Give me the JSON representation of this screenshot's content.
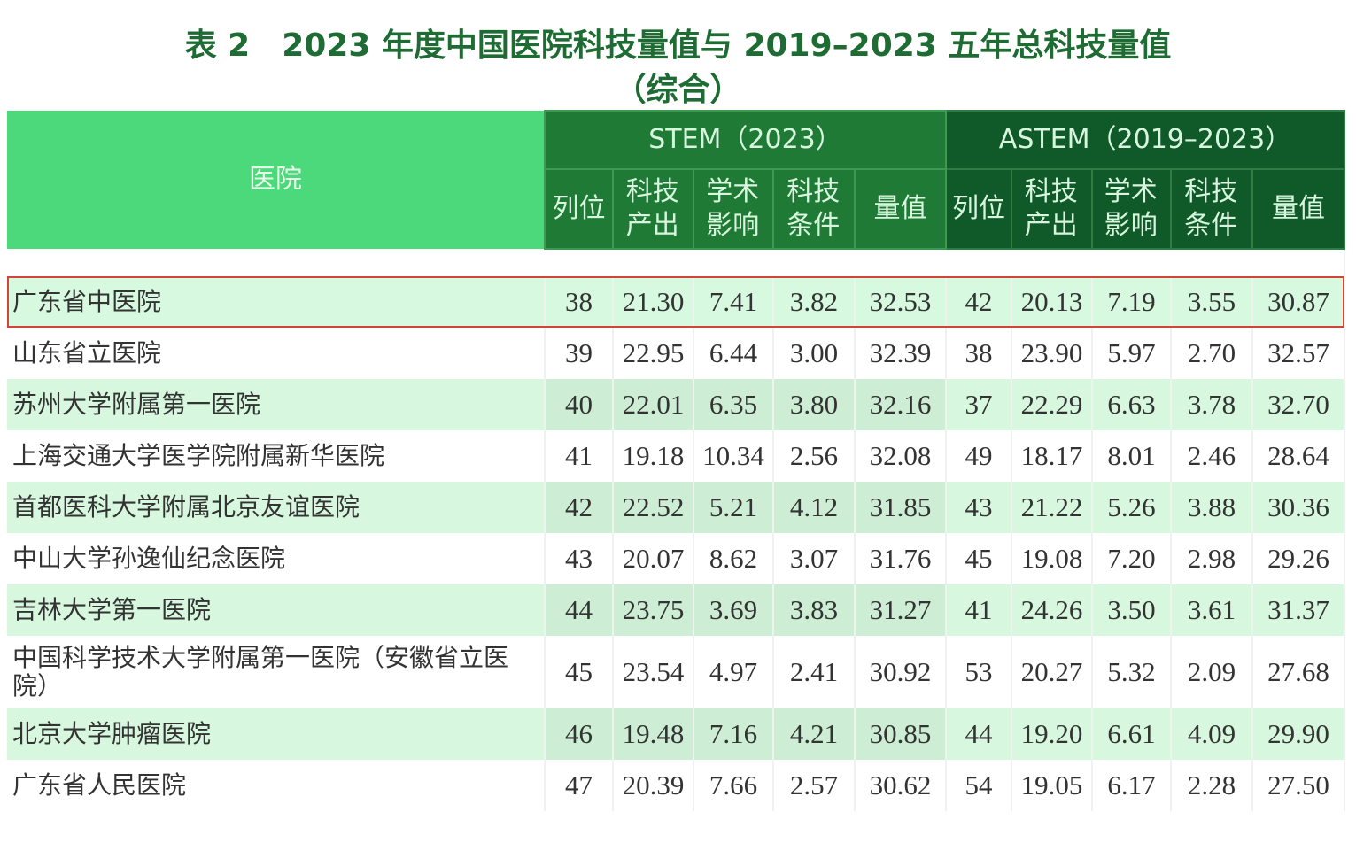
{
  "title": {
    "line1": "表 2　2023 年度中国医院科技量值与 2019–2023 五年总科技量值",
    "line2": "（综合）"
  },
  "header": {
    "hospital": "医院",
    "stem": "STEM（2023）",
    "astem": "ASTEM（2019–2023）",
    "cols": [
      "列位",
      "科技产出",
      "学术影响",
      "科技条件",
      "量值"
    ]
  },
  "rows": [
    [
      "广东省中医院",
      "38",
      "21.30",
      "7.41",
      "3.82",
      "32.53",
      "42",
      "20.13",
      "7.19",
      "3.55",
      "30.87"
    ],
    [
      "山东省立医院",
      "39",
      "22.95",
      "6.44",
      "3.00",
      "32.39",
      "38",
      "23.90",
      "5.97",
      "2.70",
      "32.57"
    ],
    [
      "苏州大学附属第一医院",
      "40",
      "22.01",
      "6.35",
      "3.80",
      "32.16",
      "37",
      "22.29",
      "6.63",
      "3.78",
      "32.70"
    ],
    [
      "上海交通大学医学院附属新华医院",
      "41",
      "19.18",
      "10.34",
      "2.56",
      "32.08",
      "49",
      "18.17",
      "8.01",
      "2.46",
      "28.64"
    ],
    [
      "首都医科大学附属北京友谊医院",
      "42",
      "22.52",
      "5.21",
      "4.12",
      "31.85",
      "43",
      "21.22",
      "5.26",
      "3.88",
      "30.36"
    ],
    [
      "中山大学孙逸仙纪念医院",
      "43",
      "20.07",
      "8.62",
      "3.07",
      "31.76",
      "45",
      "19.08",
      "7.20",
      "2.98",
      "29.26"
    ],
    [
      "吉林大学第一医院",
      "44",
      "23.75",
      "3.69",
      "3.83",
      "31.27",
      "41",
      "24.26",
      "3.50",
      "3.61",
      "31.37"
    ],
    [
      "中国科学技术大学附属第一医院（安徽省立医院）",
      "45",
      "23.54",
      "4.97",
      "2.41",
      "30.92",
      "53",
      "20.27",
      "5.32",
      "2.09",
      "27.68"
    ],
    [
      "北京大学肿瘤医院",
      "46",
      "19.48",
      "7.16",
      "4.21",
      "30.85",
      "44",
      "19.20",
      "6.61",
      "4.09",
      "29.90"
    ],
    [
      "广东省人民医院",
      "47",
      "20.39",
      "7.66",
      "2.57",
      "30.62",
      "54",
      "19.05",
      "6.17",
      "2.28",
      "27.50"
    ]
  ],
  "highlight_row": 0,
  "colors": {
    "highlight_border": "#d0443a",
    "header_light": "#4cd97b",
    "stem": "#1f7a35",
    "astem": "#0f5a28"
  }
}
